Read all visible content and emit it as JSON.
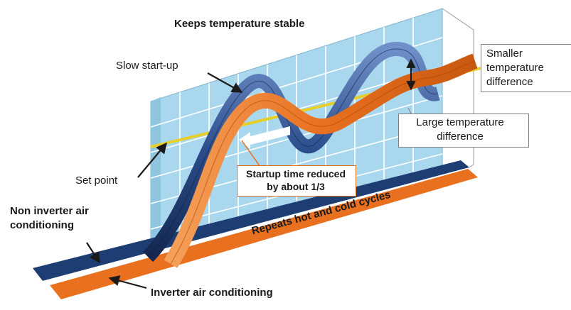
{
  "title": "Keeps temperature stable",
  "labels": {
    "slow_startup": "Slow start-up",
    "smaller_diff": "Smaller temperature difference",
    "large_diff": "Large temperature difference",
    "set_point": "Set point",
    "startup_reduced": "Startup time reduced by about 1/3",
    "non_inverter": "Non inverter air conditioning",
    "repeats": "Repeats hot and cold cycles",
    "inverter": "Inverter air conditioning"
  },
  "colors": {
    "grid_fill": "#a9d8ee",
    "grid_line": "#ffffff",
    "navy": "#1e3d73",
    "orange": "#e8701f",
    "setpoint": "#e6cf2a",
    "arrow": "#1a1a1a",
    "box_border_orange": "#e0701e"
  }
}
